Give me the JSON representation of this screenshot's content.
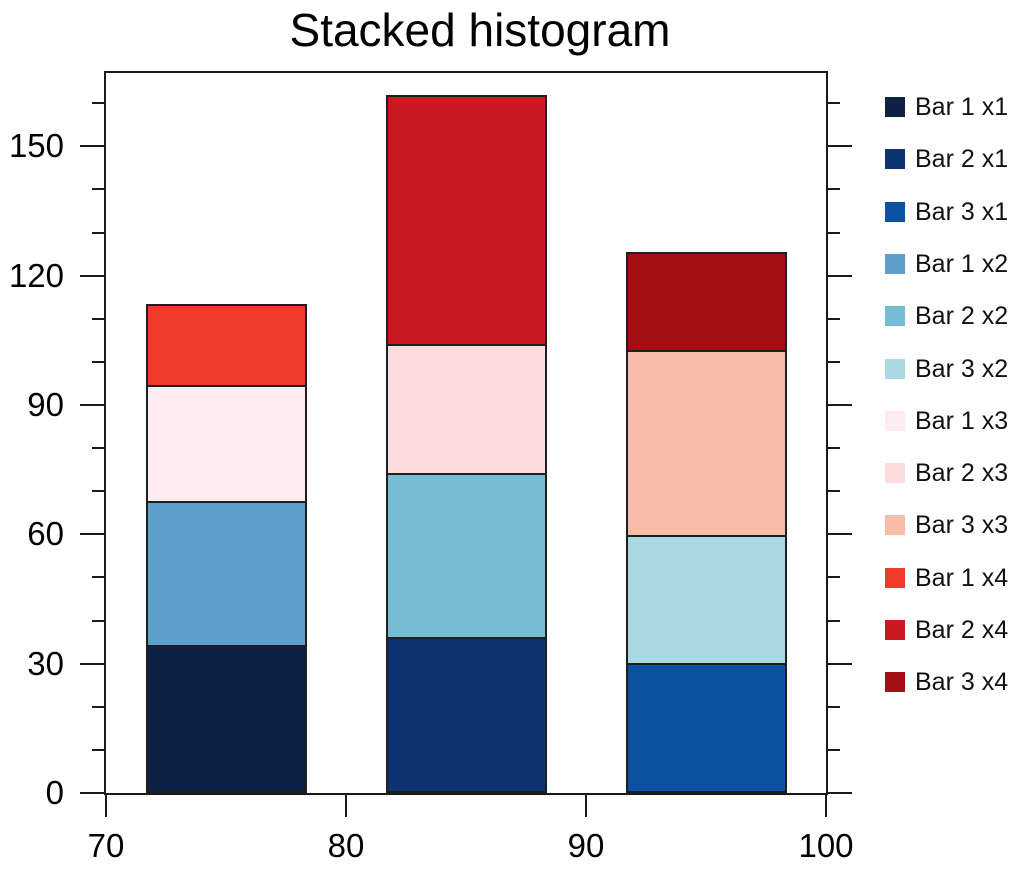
{
  "chart_data": {
    "type": "bar",
    "stacked": true,
    "title": "Stacked histogram",
    "xlabel": "",
    "ylabel": "",
    "grid": false,
    "xlim": [
      70,
      100
    ],
    "ylim": [
      0,
      167
    ],
    "xticks": [
      70,
      80,
      90,
      100
    ],
    "yticks_major": [
      0,
      30,
      60,
      90,
      120,
      150
    ],
    "yticks_minor": [
      10,
      20,
      40,
      50,
      70,
      80,
      100,
      110,
      130,
      140,
      160
    ],
    "x_centers": [
      75,
      85,
      95
    ],
    "bar_width": 6.7,
    "bar_outline_color": "#1f1f1f",
    "series": [
      {
        "level": "x1",
        "labels": [
          "Bar 1 x1",
          "Bar 2 x1",
          "Bar 3 x1"
        ],
        "values": [
          34,
          36,
          30
        ],
        "colors": [
          "#0c2144",
          "#0d3270",
          "#0b52a1"
        ]
      },
      {
        "level": "x2",
        "labels": [
          "Bar 1 x2",
          "Bar 2 x2",
          "Bar 3 x2"
        ],
        "values": [
          33.5,
          38,
          29.5
        ],
        "colors": [
          "#5b9fca",
          "#76bdd3",
          "#a9d9e1"
        ]
      },
      {
        "level": "x3",
        "labels": [
          "Bar 1 x3",
          "Bar 2 x3",
          "Bar 3 x3"
        ],
        "values": [
          27,
          30,
          43
        ],
        "colors": [
          "#fdecf2",
          "#fcdddd",
          "#f9bcab"
        ]
      },
      {
        "level": "x4",
        "labels": [
          "Bar 1 x4",
          "Bar 2 x4",
          "Bar 3 x4"
        ],
        "values": [
          19,
          58,
          23
        ],
        "colors": [
          "#ee3c2b",
          "#c9181f",
          "#a30f15"
        ]
      }
    ],
    "bar_totals": [
      113.5,
      162,
      125.5
    ],
    "legend": {
      "position": "right-outside",
      "entries": [
        {
          "label": "Bar 1 x1",
          "color": "#0c2144"
        },
        {
          "label": "Bar 2 x1",
          "color": "#0d3270"
        },
        {
          "label": "Bar 3 x1",
          "color": "#0b52a1"
        },
        {
          "label": "Bar 1 x2",
          "color": "#5b9fca"
        },
        {
          "label": "Bar 2 x2",
          "color": "#76bdd3"
        },
        {
          "label": "Bar 3 x2",
          "color": "#a9d9e1"
        },
        {
          "label": "Bar 1 x3",
          "color": "#fdecf2"
        },
        {
          "label": "Bar 2 x3",
          "color": "#fcdddd"
        },
        {
          "label": "Bar 3 x3",
          "color": "#f9bcab"
        },
        {
          "label": "Bar 1 x4",
          "color": "#ee3c2b"
        },
        {
          "label": "Bar 2 x4",
          "color": "#c9181f"
        },
        {
          "label": "Bar 3 x4",
          "color": "#a30f15"
        }
      ]
    }
  }
}
